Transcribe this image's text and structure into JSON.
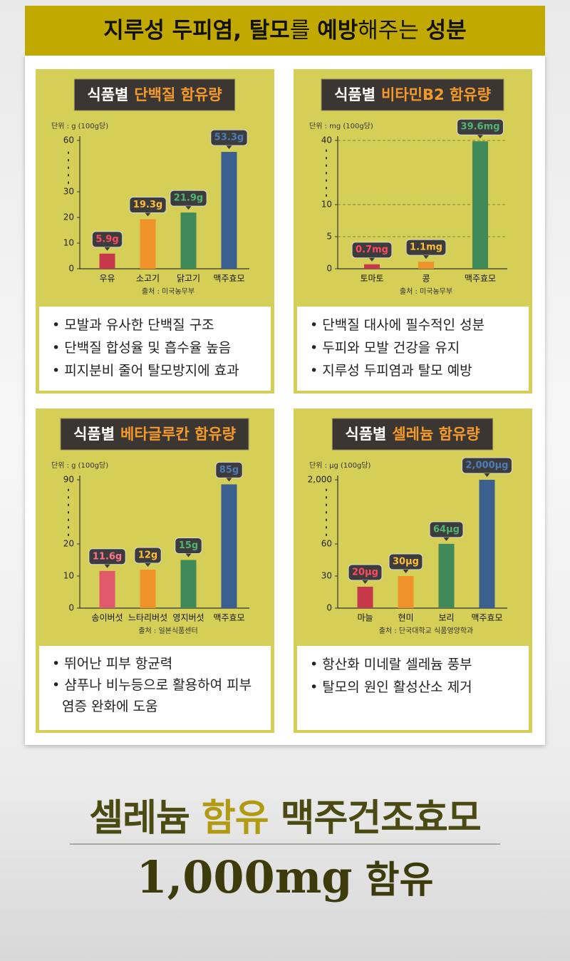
{
  "header": {
    "title_parts": [
      {
        "text": "지루성 두피염, 탈모",
        "bold": true
      },
      {
        "text": "를 ",
        "bold": false
      },
      {
        "text": "예방",
        "bold": true
      },
      {
        "text": "해주는 ",
        "bold": false
      },
      {
        "text": "성분",
        "bold": true
      }
    ]
  },
  "chart_data": [
    {
      "type": "bar",
      "title_prefix": "식품별",
      "title": "단백질 함유량",
      "unit_label": "단위 : g (100g당)",
      "source": "출처 : 미국농무부",
      "categories": [
        "우유",
        "소고기",
        "닭고기",
        "맥주효모"
      ],
      "values": [
        5.9,
        19.3,
        21.9,
        53.3
      ],
      "value_labels": [
        "5.9g",
        "19.3g",
        "21.9g",
        "53.3g"
      ],
      "colors": [
        "#c8384b",
        "#f0922a",
        "#3f8a58",
        "#3b5f8e"
      ],
      "ylim": [
        0,
        60
      ],
      "yticks": [
        0,
        10,
        20,
        30,
        60
      ],
      "axis_break": true,
      "grid": false
    },
    {
      "type": "bar",
      "title_prefix": "식품별",
      "title": "비타민B2 함유량",
      "unit_label": "단위 : mg (100g당)",
      "source": "출처 : 미국농무부",
      "categories": [
        "토마토",
        "콩",
        "맥주효모"
      ],
      "values": [
        0.7,
        1.1,
        39.6
      ],
      "value_labels": [
        "0.7mg",
        "1.1mg",
        "39.6mg"
      ],
      "colors": [
        "#c8384b",
        "#f0922a",
        "#3f8a58"
      ],
      "ylim": [
        0,
        40
      ],
      "yticks": [
        0,
        5,
        10,
        40
      ],
      "axis_break": true,
      "grid": true
    },
    {
      "type": "bar",
      "title_prefix": "식품별",
      "title": "베타글루칸 함유량",
      "unit_label": "단위 : g (100g당)",
      "source": "출처 : 일본식품센터",
      "categories": [
        "송이버섯",
        "느타리버섯",
        "영지버섯",
        "맥주효모"
      ],
      "values": [
        11.6,
        12,
        15,
        85
      ],
      "value_labels": [
        "11.6g",
        "12g",
        "15g",
        "85g"
      ],
      "colors": [
        "#e05a6c",
        "#f0922a",
        "#3f8a58",
        "#3b5f8e"
      ],
      "ylim": [
        0,
        90
      ],
      "yticks": [
        0,
        10,
        20,
        90
      ],
      "axis_break": true,
      "grid": false
    },
    {
      "type": "bar",
      "title_prefix": "식품별",
      "title": "셀레늄 함유량",
      "unit_label": "단위 : μg (100g당)",
      "source": "출처 : 단국대학교 식품영양학과",
      "categories": [
        "마늘",
        "현미",
        "보리",
        "맥주효모"
      ],
      "values": [
        20,
        30,
        64,
        2000
      ],
      "value_labels": [
        "20μg",
        "30μg",
        "64μg",
        "2,000μg"
      ],
      "colors": [
        "#c8384b",
        "#f0922a",
        "#3f8a58",
        "#3b5f8e"
      ],
      "ylim": [
        0,
        2000
      ],
      "yticks": [
        0,
        30,
        60,
        {
          "value": 2000,
          "label": "2,000"
        }
      ],
      "axis_break": true,
      "grid": false
    }
  ],
  "notes": [
    [
      "모발과 유사한 단백질 구조",
      "단백질 합성율 및 흡수율 높음",
      "피지분비 줄어 탈모방지에 효과"
    ],
    [
      "단백질 대사에 필수적인 성분",
      "두피와 모발 건강을 유지",
      "지루성 두피염과 탈모 예방"
    ],
    [
      "뛰어난 피부 항균력",
      "샴푸나 비누등으로 활용하여 피부염증 완화에 도움"
    ],
    [
      "항산화 미네랄 셀레늄 풍부",
      "탈모의 원인 활성산소 제거"
    ]
  ],
  "footer": {
    "line1": [
      {
        "text": "셀레늄 ",
        "accent": false
      },
      {
        "text": "함유",
        "accent": true
      },
      {
        "text": " 맥주건조효모",
        "accent": false
      }
    ],
    "line2": {
      "amount": "1,000mg",
      "text": " 함유"
    }
  }
}
